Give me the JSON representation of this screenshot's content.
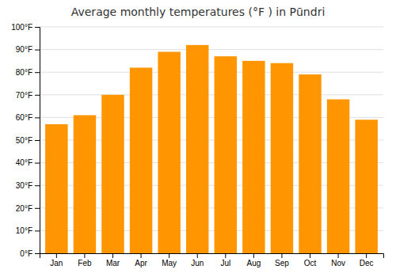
{
  "chart_data": {
    "type": "bar",
    "title": "Average monthly temperatures (°F ) in Pūndri",
    "categories": [
      "Jan",
      "Feb",
      "Mar",
      "Apr",
      "May",
      "Jun",
      "Jul",
      "Aug",
      "Sep",
      "Oct",
      "Nov",
      "Dec"
    ],
    "values": [
      57,
      61,
      70,
      82,
      89,
      92,
      87,
      85,
      84,
      79,
      68,
      59
    ],
    "color": "#FF9500",
    "ylim": [
      0,
      100
    ],
    "yticks": [
      {
        "value": 0,
        "label": "0°F"
      },
      {
        "value": 10,
        "label": "10°F"
      },
      {
        "value": 20,
        "label": "20°F"
      },
      {
        "value": 30,
        "label": "30°F"
      },
      {
        "value": 40,
        "label": "40°F"
      },
      {
        "value": 50,
        "label": "50°F"
      },
      {
        "value": 60,
        "label": "60°F"
      },
      {
        "value": 70,
        "label": "70°F"
      },
      {
        "value": 80,
        "label": "80°F"
      },
      {
        "value": 90,
        "label": "90°F"
      },
      {
        "value": 100,
        "label": "100°F"
      }
    ],
    "grid": true
  }
}
